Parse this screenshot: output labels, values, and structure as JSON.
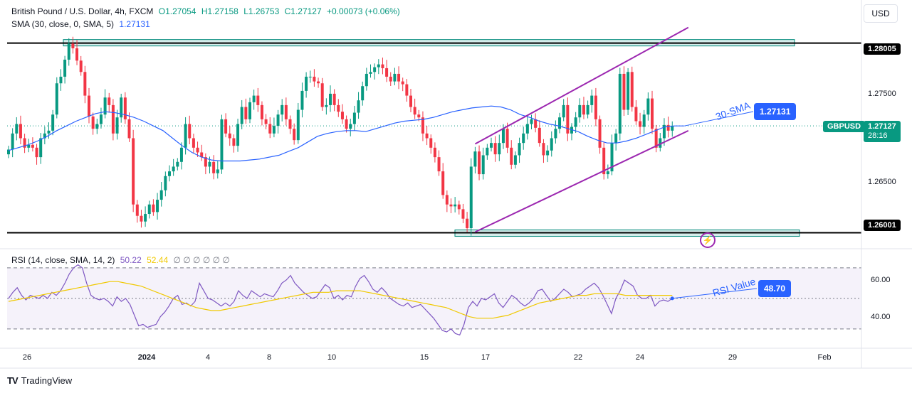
{
  "header": {
    "symbol": "British Pound / U.S. Dollar, 4h, FXCM",
    "open": "O1.27054",
    "high": "H1.27158",
    "low": "L1.26753",
    "close": "C1.27127",
    "change": "+0.00073 (+0.06%)",
    "sma_label": "SMA (30, close, 0, SMA, 5)",
    "sma_value": "1.27131"
  },
  "currency_button": "USD",
  "price_axis": {
    "ticks": [
      "1.27500",
      "1.26500"
    ],
    "levels": [
      {
        "label": "1.28005",
        "value": 1.28005
      },
      {
        "label": "1.26001",
        "value": 1.26001
      }
    ],
    "symbol_tag": "GBPUSD",
    "last_price": "1.27127",
    "countdown": "28:16",
    "sma_tag": "1.27131"
  },
  "annotations": {
    "sma": "30-SMA",
    "rsi": "RSI Value",
    "rsi_value": "48.70"
  },
  "rsi_legend": {
    "label": "RSI (14, close, SMA, 14, 2)",
    "rsi": "50.22",
    "sma": "52.44",
    "rest": "∅ ∅ ∅ ∅ ∅ ∅"
  },
  "rsi_axis": {
    "ticks": [
      "60.00",
      "40.00"
    ]
  },
  "time_axis": [
    "26",
    "2024",
    "4",
    "8",
    "10",
    "15",
    "17",
    "22",
    "24",
    "29",
    "Feb"
  ],
  "brand": "TradingView",
  "colors": {
    "up": "#089981",
    "down": "#f23645",
    "sma": "#2962ff",
    "channel": "#9c27b0",
    "rsi": "#7e57c2",
    "rsi_ma": "#f0c900",
    "zone_fill": "#b2dfdb",
    "zone_border": "#00897b"
  },
  "chart_data": {
    "type": "candlestick",
    "title": "British Pound / U.S. Dollar, 4h, FXCM",
    "ylim": [
      1.2587,
      1.2816
    ],
    "close_series": [
      1.2688,
      1.2705,
      1.2715,
      1.27,
      1.269,
      1.2693,
      1.269,
      1.268,
      1.27,
      1.2705,
      1.2708,
      1.2725,
      1.2758,
      1.2765,
      1.2783,
      1.28,
      1.2795,
      1.2782,
      1.277,
      1.2745,
      1.2723,
      1.271,
      1.2715,
      1.2725,
      1.2743,
      1.2735,
      1.2705,
      1.2722,
      1.2743,
      1.272,
      1.27,
      1.263,
      1.2618,
      1.2612,
      1.262,
      1.263,
      1.2622,
      1.2635,
      1.2645,
      1.266,
      1.2665,
      1.267,
      1.2675,
      1.269,
      1.2715,
      1.27,
      1.269,
      1.2685,
      1.268,
      1.267,
      1.2675,
      1.2663,
      1.2667,
      1.272,
      1.2705,
      1.27,
      1.2692,
      1.2715,
      1.2733,
      1.272,
      1.2738,
      1.2745,
      1.2735,
      1.272,
      1.2715,
      1.2705,
      1.2713,
      1.2725,
      1.2735,
      1.272,
      1.271,
      1.2698,
      1.273,
      1.275,
      1.2765,
      1.2765,
      1.276,
      1.2758,
      1.2733,
      1.2735,
      1.2747,
      1.2735,
      1.2728,
      1.272,
      1.271,
      1.2715,
      1.2727,
      1.274,
      1.2755,
      1.2768,
      1.277,
      1.2775,
      1.2778,
      1.2774,
      1.2765,
      1.276,
      1.2768,
      1.276,
      1.2757,
      1.2745,
      1.2733,
      1.2725,
      1.2722,
      1.2705,
      1.27,
      1.269,
      1.268,
      1.2665,
      1.264,
      1.263,
      1.2628,
      1.263,
      1.2625,
      1.2615,
      1.2605,
      1.267,
      1.2686,
      1.2662,
      1.2682,
      1.269,
      1.2695,
      1.2683,
      1.2695,
      1.271,
      1.269,
      1.2672,
      1.2682,
      1.2695,
      1.2705,
      1.2715,
      1.272,
      1.2711,
      1.2695,
      1.2682,
      1.2687,
      1.27,
      1.271,
      1.2722,
      1.2735,
      1.2705,
      1.2712,
      1.2722,
      1.2735,
      1.2725,
      1.2735,
      1.2745,
      1.272,
      1.269,
      1.2662,
      1.2665,
      1.2695,
      1.2705,
      1.2768,
      1.273,
      1.277,
      1.2733,
      1.2718,
      1.2712,
      1.2725,
      1.2742,
      1.271,
      1.269,
      1.27,
      1.2714,
      1.2708,
      1.2713
    ],
    "sma30": {
      "name": "30-SMA",
      "values": [
        1.2687,
        1.269,
        1.2693,
        1.2697,
        1.2702,
        1.2708,
        1.2713,
        1.2718,
        1.2722,
        1.2726,
        1.2728,
        1.2727,
        1.2725,
        1.2722,
        1.2718,
        1.2713,
        1.2708,
        1.27,
        1.2692,
        1.2685,
        1.268,
        1.2677,
        1.2676,
        1.2676,
        1.2676,
        1.2677,
        1.2678,
        1.268,
        1.2682,
        1.2686,
        1.269,
        1.2696,
        1.2702,
        1.2705,
        1.2707,
        1.2708,
        1.2708,
        1.2707,
        1.271,
        1.2713,
        1.2716,
        1.2718,
        1.2719,
        1.272,
        1.2722,
        1.2725,
        1.2728,
        1.273,
        1.2732,
        1.2733,
        1.2734,
        1.2733,
        1.273,
        1.2725,
        1.2722,
        1.2718,
        1.2715,
        1.2713,
        1.271,
        1.2707,
        1.2702,
        1.2698,
        1.2695,
        1.2695,
        1.2697,
        1.27,
        1.2704,
        1.2708,
        1.2712,
        1.2713,
        1.2713
      ],
      "start_index": 0,
      "step": 2.4
    },
    "levels": [
      1.28005,
      1.26001
    ],
    "channel": {
      "upper": [
        [
          116,
          1.2694
        ],
        [
          169,
          1.2817
        ]
      ],
      "lower": [
        [
          116,
          1.2601
        ],
        [
          169,
          1.2708
        ]
      ]
    },
    "rsi": {
      "label": "RSI (14, close, SMA, 14, 2)",
      "values": [
        50,
        54,
        57,
        52,
        49,
        52,
        51,
        50,
        52,
        50,
        54,
        52,
        55,
        60,
        66,
        70,
        72,
        70,
        60,
        52,
        50,
        49,
        50,
        48,
        45,
        51,
        48,
        50,
        46,
        39,
        32,
        33,
        31,
        32,
        33,
        38,
        41,
        45,
        50,
        52,
        46,
        47,
        45,
        48,
        60,
        55,
        50,
        49,
        47,
        45,
        47,
        45,
        48,
        55,
        52,
        50,
        55,
        53,
        51,
        53,
        52,
        51,
        55,
        60,
        62,
        65,
        60,
        57,
        54,
        52,
        50,
        51,
        55,
        59,
        57,
        50,
        52,
        49,
        52,
        51,
        58,
        63,
        65,
        61,
        56,
        54,
        57,
        54,
        50,
        48,
        46,
        45,
        47,
        44,
        45,
        46,
        43,
        40,
        37,
        33,
        29,
        28,
        30,
        27,
        26,
        33,
        44,
        48,
        45,
        50,
        49,
        51,
        53,
        47,
        44,
        48,
        52,
        50,
        47,
        45,
        47,
        50,
        55,
        56,
        52,
        48,
        50,
        53,
        56,
        54,
        51,
        52,
        53,
        56,
        58,
        60,
        57,
        52,
        46,
        40,
        50,
        55,
        62,
        60,
        58,
        52,
        50,
        50,
        52,
        45,
        48,
        49,
        48,
        50
      ],
      "ma": [
        48,
        49,
        50,
        51,
        52,
        53,
        54,
        55,
        56,
        57,
        58,
        59,
        60,
        61,
        61,
        60,
        59,
        58,
        56,
        54,
        52,
        50,
        48,
        46,
        44,
        43,
        42,
        42,
        43,
        44,
        45,
        46,
        47,
        48,
        49,
        50,
        51,
        52,
        53,
        54,
        54,
        54,
        55,
        55,
        55,
        55,
        54,
        53,
        52,
        51,
        50,
        49,
        48,
        47,
        46,
        45,
        44,
        42,
        40,
        38,
        37,
        37,
        37,
        38,
        39,
        41,
        43,
        45,
        47,
        48,
        49,
        50,
        51,
        52,
        52,
        53,
        53,
        53,
        53,
        52,
        52,
        52,
        52,
        52,
        52,
        52
      ],
      "ylim": [
        22,
        76
      ],
      "guides": [
        30,
        50,
        70
      ]
    },
    "xlabel": "",
    "ylabel": ""
  }
}
